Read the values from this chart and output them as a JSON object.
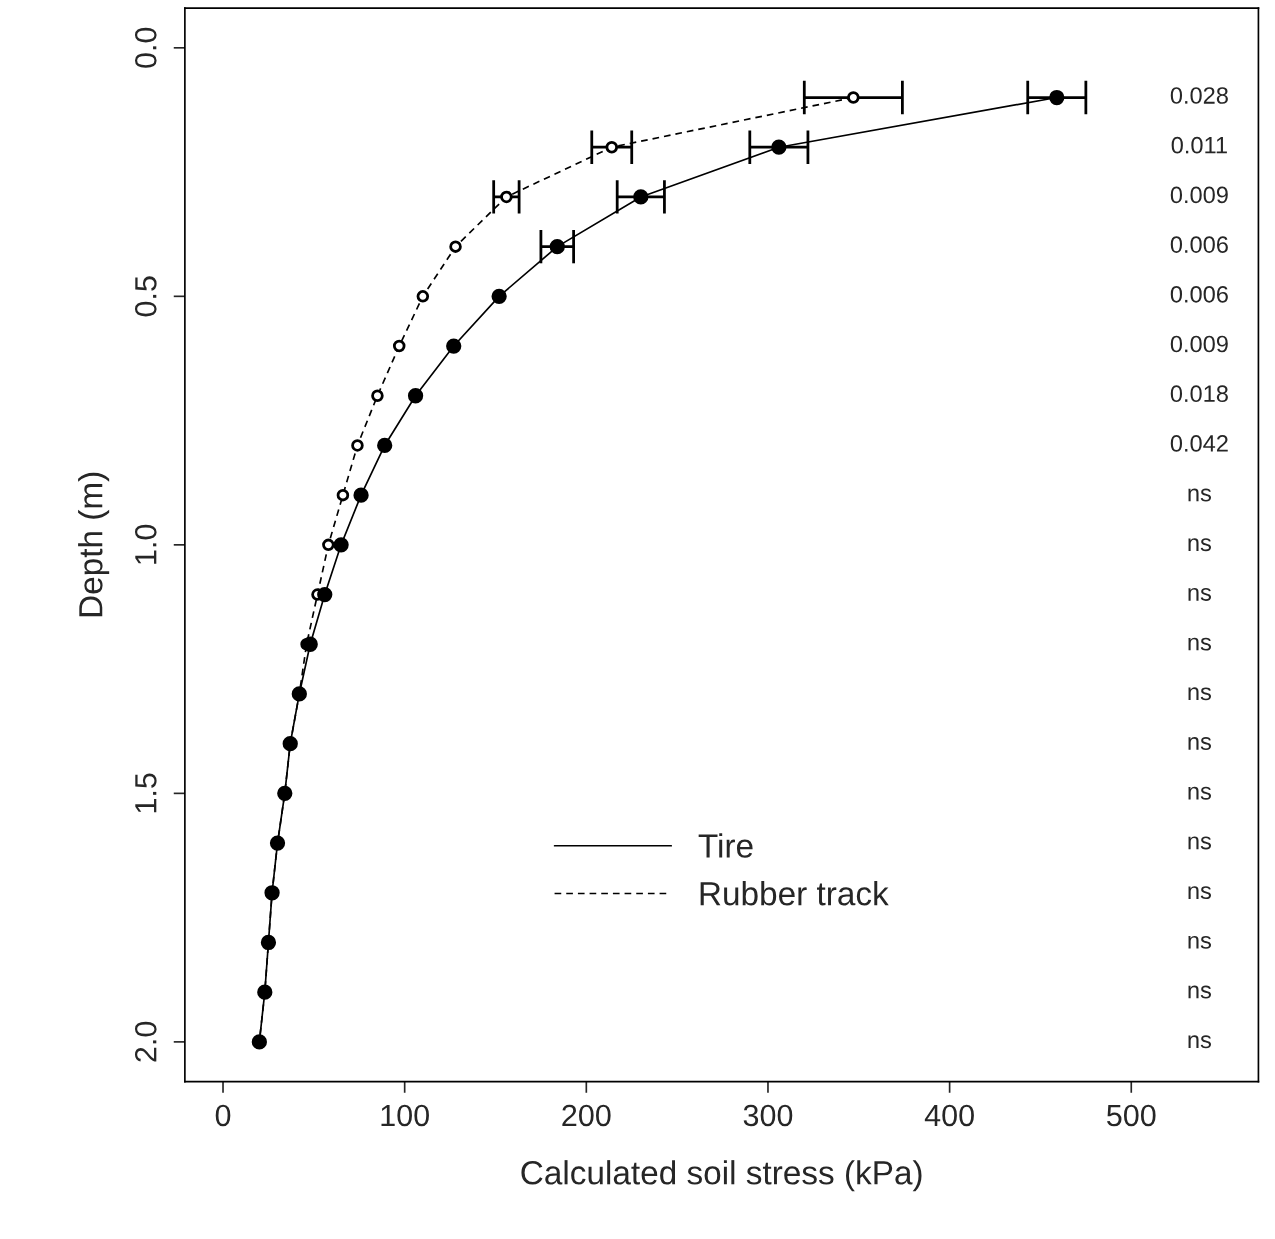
{
  "chart_data": {
    "type": "line",
    "xlabel": "Calculated soil stress (kPa)",
    "ylabel": "Depth (m)",
    "xlim": [
      -21,
      570
    ],
    "ylim": [
      2.08,
      -0.08
    ],
    "xticks": [
      0,
      100,
      200,
      300,
      400,
      500
    ],
    "yticks": [
      {
        "value": 0,
        "label": "0.0"
      },
      {
        "value": 0.5,
        "label": "0.5"
      },
      {
        "value": 1,
        "label": "1.0"
      },
      {
        "value": 1.5,
        "label": "1.5"
      },
      {
        "value": 2,
        "label": "2.0"
      }
    ],
    "orientation": "horizontal",
    "grid": false,
    "legend": "bottom",
    "marker": "circle",
    "series": [
      {
        "name": "Tire",
        "color": "#000000",
        "line_style": "solid",
        "x": [
          0.1,
          0.2,
          0.3,
          0.4,
          0.5,
          0.6,
          0.7,
          0.8,
          0.9,
          1.0,
          1.1,
          1.2,
          1.3,
          1.4,
          1.5,
          1.6,
          1.7,
          1.8,
          1.9,
          2.0
        ],
        "values": [
          459,
          306,
          230,
          184,
          152,
          127,
          106,
          89,
          76,
          65,
          56,
          48,
          42,
          37,
          34,
          30,
          27,
          25,
          23,
          20
        ],
        "errors": [
          16,
          16,
          13,
          9,
          null,
          null,
          null,
          null,
          null,
          null,
          null,
          null,
          null,
          null,
          null,
          null,
          null,
          null,
          null,
          null
        ]
      },
      {
        "name": "Rubber track",
        "color": "#000000",
        "line_style": "dashed",
        "x": [
          0.1,
          0.2,
          0.3,
          0.4,
          0.5,
          0.6,
          0.7,
          0.8,
          0.9,
          1.0,
          1.1,
          1.2,
          1.3,
          1.4,
          1.5,
          1.6,
          1.7,
          1.8,
          1.9,
          2.0
        ],
        "values": [
          347,
          214,
          156,
          128,
          110,
          97,
          85,
          74,
          66,
          58,
          52,
          46,
          42,
          37,
          34,
          30,
          27,
          25,
          23,
          20
        ],
        "errors": [
          27,
          11,
          7,
          null,
          null,
          null,
          null,
          null,
          null,
          null,
          null,
          null,
          null,
          null,
          null,
          null,
          null,
          null,
          null,
          null
        ]
      }
    ],
    "annotations": [
      "0.028",
      "0.011",
      "0.009",
      "0.006",
      "0.006",
      "0.009",
      "0.018",
      "0.042",
      "ns",
      "ns",
      "ns",
      "ns",
      "ns",
      "ns",
      "ns",
      "ns",
      "ns",
      "ns",
      "ns",
      "ns"
    ]
  }
}
